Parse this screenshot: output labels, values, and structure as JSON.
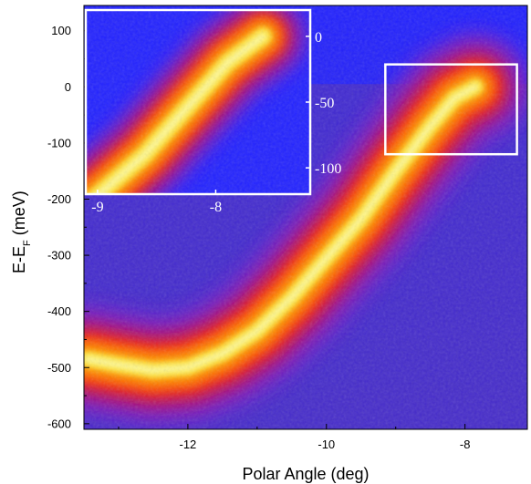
{
  "chart_data": {
    "type": "heatmap",
    "xlabel": "Polar Angle (deg)",
    "ylabel_main": "E-E",
    "ylabel_sub": "F",
    "ylabel_unit": " (meV)",
    "xlim": [
      -13.5,
      -7.1
    ],
    "ylim": [
      -610,
      145
    ],
    "xticks": [
      {
        "value": -12,
        "label": "-12"
      },
      {
        "value": -10,
        "label": "-10"
      },
      {
        "value": -8,
        "label": "-8"
      }
    ],
    "yticks": [
      {
        "value": 100,
        "label": "100"
      },
      {
        "value": 0,
        "label": "0"
      },
      {
        "value": -100,
        "label": "-100"
      },
      {
        "value": -200,
        "label": "-200"
      },
      {
        "value": -300,
        "label": "-300"
      },
      {
        "value": -400,
        "label": "-400"
      },
      {
        "value": -500,
        "label": "-500"
      },
      {
        "value": -600,
        "label": "-600"
      }
    ],
    "colormap": [
      "#1a1aff",
      "#7a1ac8",
      "#e0102a",
      "#ff4a00",
      "#ffa000",
      "#ffe840",
      "#ffffb0"
    ],
    "background_color": "#1f2ff0",
    "band": [
      {
        "x": -13.45,
        "y": -485
      },
      {
        "x": -13.0,
        "y": -495
      },
      {
        "x": -12.5,
        "y": -505
      },
      {
        "x": -12.0,
        "y": -500
      },
      {
        "x": -11.5,
        "y": -475
      },
      {
        "x": -11.0,
        "y": -435
      },
      {
        "x": -10.5,
        "y": -375
      },
      {
        "x": -10.0,
        "y": -305
      },
      {
        "x": -9.5,
        "y": -235
      },
      {
        "x": -9.0,
        "y": -150
      },
      {
        "x": -8.5,
        "y": -70
      },
      {
        "x": -8.15,
        "y": -20
      },
      {
        "x": -7.85,
        "y": 0
      }
    ],
    "highlight_box": {
      "x": [
        -9.15,
        -7.25
      ],
      "y": [
        -120,
        40
      ],
      "color": "#ffffff"
    },
    "inset": {
      "xlim": [
        -9.1,
        -7.2
      ],
      "ylim": [
        -120,
        20
      ],
      "xticks": [
        {
          "value": -9,
          "label": "-9"
        },
        {
          "value": -8,
          "label": "-8"
        }
      ],
      "yticks": [
        {
          "value": 0,
          "label": "0"
        },
        {
          "value": -50,
          "label": "-50"
        },
        {
          "value": -100,
          "label": "-100"
        }
      ],
      "band": [
        {
          "x": -9.05,
          "y": -125
        },
        {
          "x": -8.6,
          "y": -90
        },
        {
          "x": -8.2,
          "y": -50
        },
        {
          "x": -7.9,
          "y": -20
        },
        {
          "x": -7.6,
          "y": 0
        }
      ]
    }
  }
}
